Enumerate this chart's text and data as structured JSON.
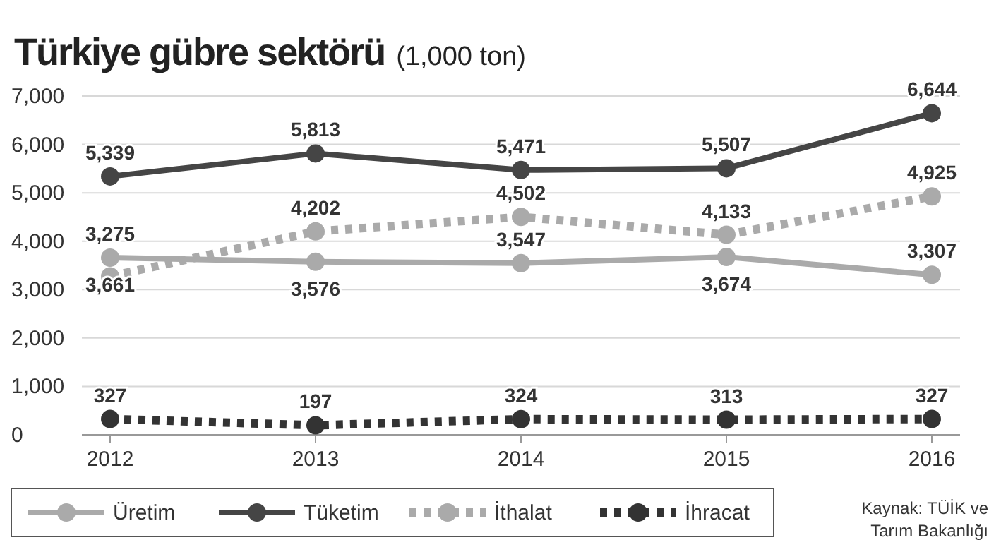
{
  "chart_data": {
    "type": "line",
    "title": "Türkiye gübre sektörü",
    "subtitle": "(1,000 ton)",
    "categories": [
      "2012",
      "2013",
      "2014",
      "2015",
      "2016"
    ],
    "series": [
      {
        "name": "Üretim",
        "color": "#aaaaaa",
        "line_style": "solid",
        "values": [
          3661,
          3576,
          3547,
          3674,
          3307
        ],
        "value_labels": [
          "3,661",
          "3,576",
          "3,547",
          "3,674",
          "3,307"
        ]
      },
      {
        "name": "Tüketim",
        "color": "#454545",
        "line_style": "solid",
        "values": [
          5339,
          5813,
          5471,
          5507,
          6644
        ],
        "value_labels": [
          "5,339",
          "5,813",
          "5,471",
          "5,507",
          "6,644"
        ]
      },
      {
        "name": "İthalat",
        "color": "#aaaaaa",
        "line_style": "dotted",
        "values": [
          3275,
          4202,
          4502,
          4133,
          4925
        ],
        "value_labels": [
          "3,275",
          "4,202",
          "4,502",
          "4,133",
          "4,925"
        ]
      },
      {
        "name": "İhracat",
        "color": "#333333",
        "line_style": "dotted",
        "values": [
          327,
          197,
          324,
          313,
          327
        ],
        "value_labels": [
          "327",
          "197",
          "324",
          "313",
          "327"
        ]
      }
    ],
    "ylim": [
      0,
      7000
    ],
    "yticks": [
      {
        "value": 0,
        "label": "0"
      },
      {
        "value": 1000,
        "label": "1,000"
      },
      {
        "value": 2000,
        "label": "2,000"
      },
      {
        "value": 3000,
        "label": "3,000"
      },
      {
        "value": 4000,
        "label": "4,000"
      },
      {
        "value": 5000,
        "label": "5,000"
      },
      {
        "value": 6000,
        "label": "6,000"
      },
      {
        "value": 7000,
        "label": "7,000"
      }
    ],
    "grid": "y",
    "legend": "bottom",
    "marker": "circle",
    "annotations": [
      "Kaynak: TÜİK ve Tarım Bakanlığı"
    ]
  }
}
